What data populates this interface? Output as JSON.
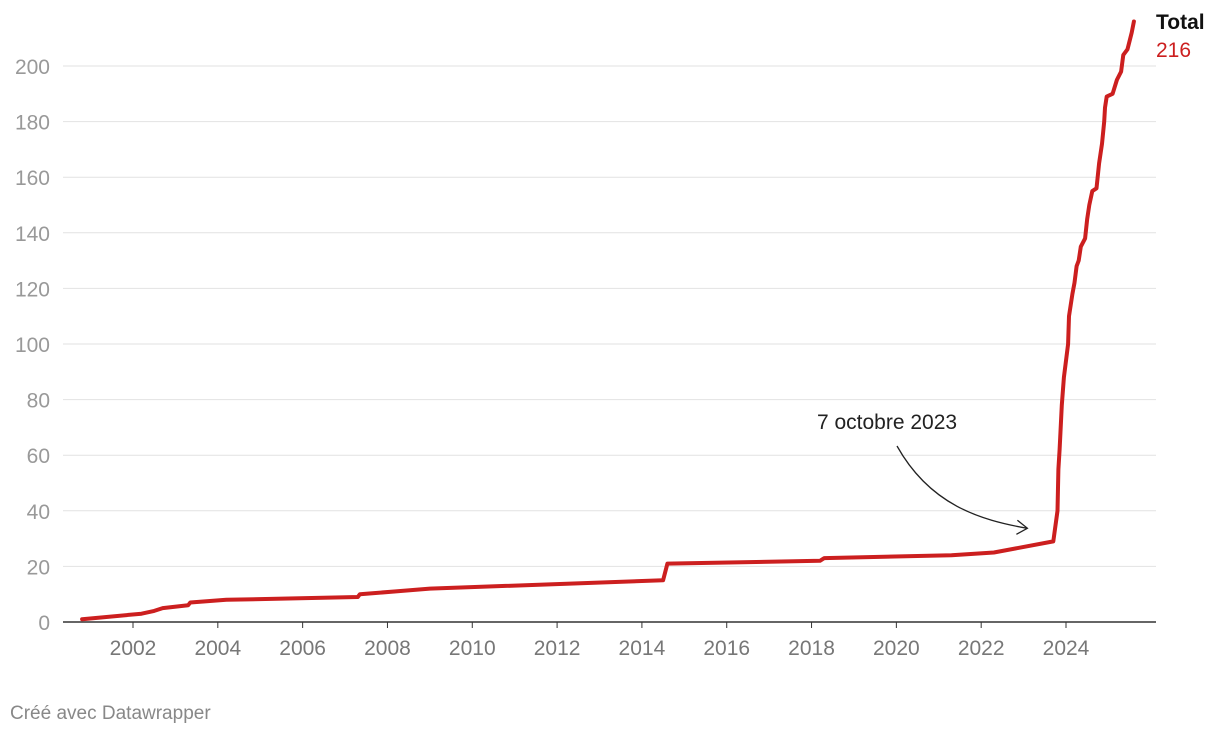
{
  "chart_data": {
    "type": "line",
    "title": "",
    "xlabel": "",
    "ylabel": "",
    "xlim": [
      2000.6,
      2026.0
    ],
    "ylim": [
      0,
      220
    ],
    "yticks": [
      0,
      20,
      40,
      60,
      80,
      100,
      120,
      140,
      160,
      180,
      200
    ],
    "xticks": [
      2002,
      2004,
      2006,
      2008,
      2010,
      2012,
      2014,
      2016,
      2018,
      2020,
      2022,
      2024
    ],
    "grid": true,
    "legend": "none",
    "series": [
      {
        "name": "Total",
        "color": "#cc1f1f",
        "end_value_label": "216",
        "points": [
          [
            2000.8,
            1
          ],
          [
            2002.2,
            3
          ],
          [
            2002.5,
            4
          ],
          [
            2002.7,
            5
          ],
          [
            2003.3,
            6
          ],
          [
            2003.35,
            7
          ],
          [
            2004.2,
            8
          ],
          [
            2007.3,
            9
          ],
          [
            2007.35,
            10
          ],
          [
            2008.2,
            11
          ],
          [
            2009.0,
            12
          ],
          [
            2014.5,
            15
          ],
          [
            2014.6,
            21
          ],
          [
            2018.2,
            22
          ],
          [
            2018.3,
            23
          ],
          [
            2021.3,
            24
          ],
          [
            2022.3,
            25
          ],
          [
            2023.7,
            29
          ],
          [
            2023.8,
            40
          ],
          [
            2023.82,
            55
          ],
          [
            2023.85,
            62
          ],
          [
            2023.9,
            78
          ],
          [
            2023.95,
            88
          ],
          [
            2024.05,
            100
          ],
          [
            2024.07,
            110
          ],
          [
            2024.15,
            118
          ],
          [
            2024.2,
            122
          ],
          [
            2024.25,
            128
          ],
          [
            2024.3,
            130
          ],
          [
            2024.35,
            135
          ],
          [
            2024.45,
            138
          ],
          [
            2024.5,
            145
          ],
          [
            2024.55,
            150
          ],
          [
            2024.62,
            155
          ],
          [
            2024.72,
            156
          ],
          [
            2024.78,
            165
          ],
          [
            2024.85,
            172
          ],
          [
            2024.9,
            180
          ],
          [
            2024.92,
            185
          ],
          [
            2024.96,
            189
          ],
          [
            2025.1,
            190
          ],
          [
            2025.2,
            195
          ],
          [
            2025.3,
            198
          ],
          [
            2025.35,
            204
          ],
          [
            2025.45,
            206
          ],
          [
            2025.55,
            212
          ],
          [
            2025.6,
            216
          ]
        ]
      }
    ],
    "annotations": [
      {
        "text": "7 octobre 2023",
        "x": 2023.75,
        "y": 33
      }
    ]
  },
  "credit": "Créé avec Datawrapper"
}
